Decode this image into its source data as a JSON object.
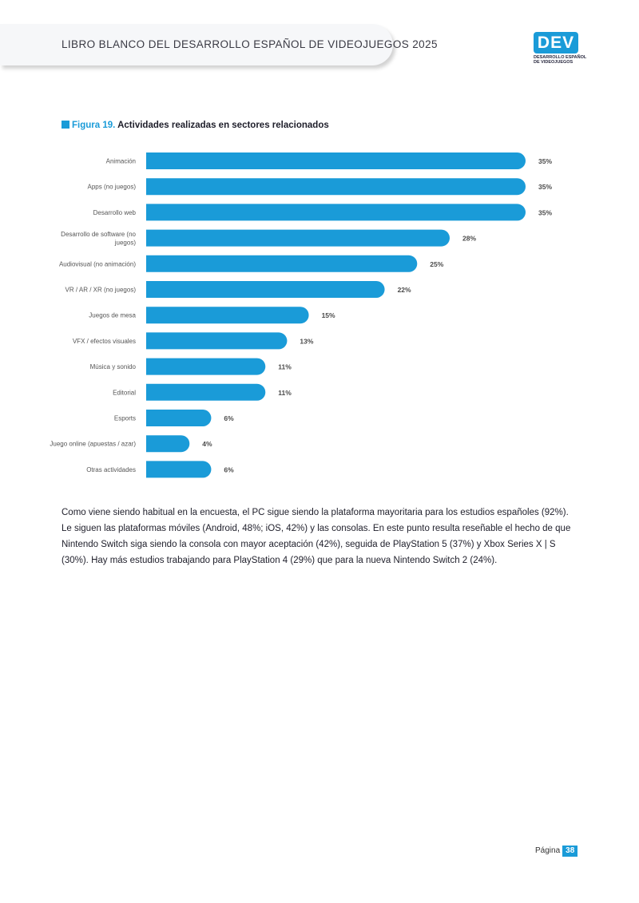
{
  "header": {
    "title": "LIBRO BLANCO DEL DESARROLLO ESPAÑOL DE VIDEOJUEGOS 2025"
  },
  "logo": {
    "mark": "DEV",
    "line1": "DESARROLLO ESPAÑOL",
    "line2": "DE VIDEOJUEGOS"
  },
  "figure": {
    "label": "Figura 19.",
    "title": "Actividades realizadas en sectores relacionados"
  },
  "chart_data": {
    "type": "bar",
    "orientation": "horizontal",
    "categories": [
      "Animación",
      "Apps (no juegos)",
      "Desarrollo web",
      [
        "Desarrollo de software (no",
        "juegos)"
      ],
      "Audiovisual (no animación)",
      "VR / AR / XR (no juegos)",
      "Juegos de mesa",
      "VFX / efectos visuales",
      "Música y sonido",
      "Editorial",
      "Esports",
      "Juego online (apuestas / azar)",
      "Otras actividades"
    ],
    "values": [
      35,
      35,
      35,
      28,
      25,
      22,
      15,
      13,
      11,
      11,
      6,
      4,
      6
    ],
    "value_labels": [
      "35%",
      "35%",
      "35%",
      "28%",
      "25%",
      "22%",
      "15%",
      "13%",
      "11%",
      "11%",
      "6%",
      "4%",
      "6%"
    ],
    "xlim": [
      0,
      35
    ],
    "bar_color": "#1a9bd8",
    "grid": false,
    "legend": "none"
  },
  "body_text": "Como viene siendo habitual en la encuesta, el PC sigue siendo la plataforma mayoritaria para los estudios españoles (92%). Le siguen las plataformas móviles (Android, 48%; iOS, 42%) y las consolas. En este punto resulta reseñable el hecho de que Nintendo Switch siga siendo la consola con mayor aceptación (42%), seguida de PlayStation 5 (37%) y Xbox Series X | S (30%). Hay más estudios trabajando para PlayStation 4 (29%) que para la nueva Nintendo Switch 2 (24%).",
  "footer": {
    "page_label": "Página",
    "page_number": "38"
  },
  "colors": {
    "accent": "#1a9bd8",
    "header_bg": "#f6f7f9"
  }
}
